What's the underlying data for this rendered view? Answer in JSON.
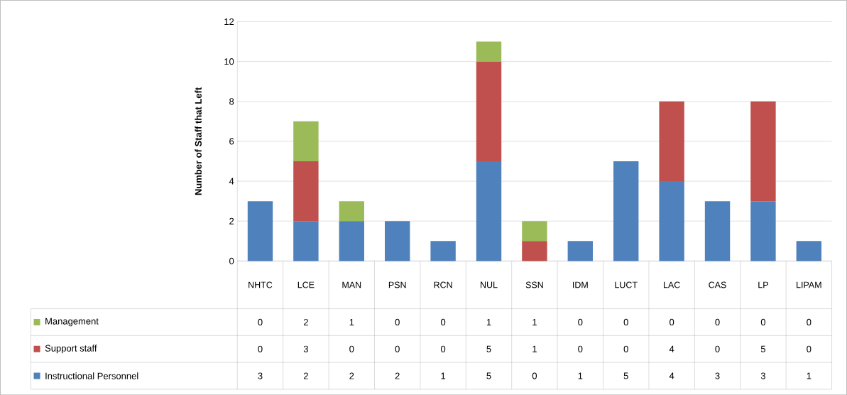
{
  "chart_data": {
    "type": "bar",
    "stacked": true,
    "ylabel": "Number of Staff that Left",
    "categories": [
      "NHTC",
      "LCE",
      "MAN",
      "PSN",
      "RCN",
      "NUL",
      "SSN",
      "IDM",
      "LUCT",
      "LAC",
      "CAS",
      "LP",
      "LIPAM"
    ],
    "series": [
      {
        "name": "Instructional Personnel",
        "color": "#4f81bd",
        "values": [
          3,
          2,
          2,
          2,
          1,
          5,
          0,
          1,
          5,
          4,
          3,
          3,
          1
        ]
      },
      {
        "name": "Support staff",
        "color": "#c0504d",
        "values": [
          0,
          3,
          0,
          0,
          0,
          5,
          1,
          0,
          0,
          4,
          0,
          5,
          0
        ]
      },
      {
        "name": "Management",
        "color": "#9bbb59",
        "values": [
          0,
          2,
          1,
          0,
          0,
          1,
          1,
          0,
          0,
          0,
          0,
          0,
          0
        ]
      }
    ],
    "ylim": [
      0,
      12
    ],
    "yticks": [
      0,
      2,
      4,
      6,
      8,
      10,
      12
    ],
    "grid": "y",
    "legend": "bottom",
    "data_labels": true
  }
}
